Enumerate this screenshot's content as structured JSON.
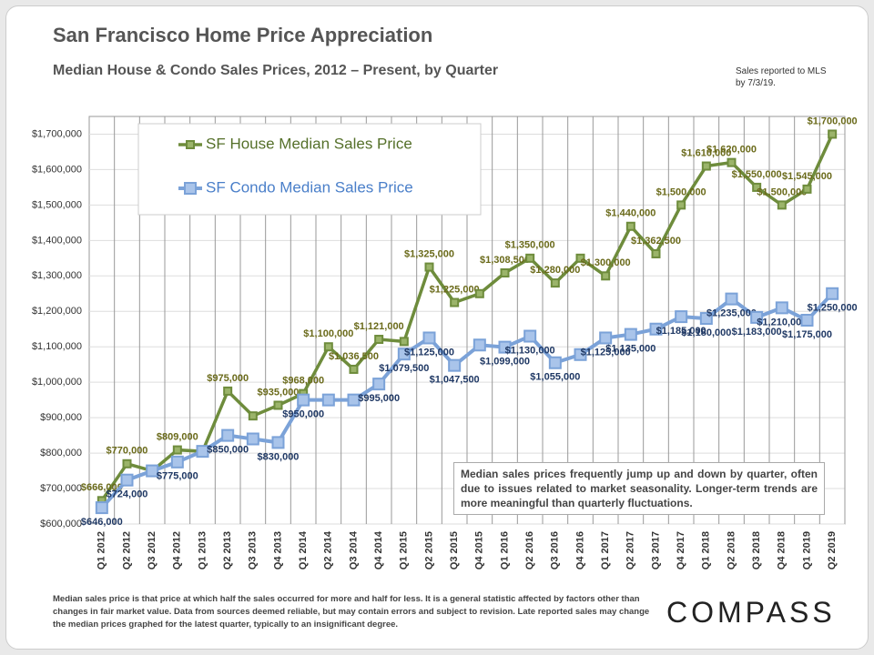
{
  "chart_data": {
    "type": "line",
    "title": "San Francisco Home Price Appreciation",
    "subtitle": "Median House & Condo Sales Prices, 2012 – Present, by Quarter",
    "note": "Sales reported to MLS by 7/3/19.",
    "annotation": "Median sales prices frequently jump up and down by quarter, often due to issues related to market seasonality. Longer-term trends are more meaningful than quarterly fluctuations.",
    "footnote": "Median sales price is that price at which half the sales occurred for more and half for less. It is a general statistic affected by factors other than changes in fair market value. Data from sources deemed reliable, but may contain errors and subject to revision. Late reported sales may change the median prices graphed for the latest quarter, typically to an insignificant degree.",
    "brand": "COMPASS",
    "categories": [
      "Q1 2012",
      "Q2 2012",
      "Q3 2012",
      "Q4 2012",
      "Q1 2013",
      "Q2 2013",
      "Q3 2013",
      "Q4 2013",
      "Q1 2014",
      "Q2 2014",
      "Q3 2014",
      "Q4 2014",
      "Q1 2015",
      "Q2 2015",
      "Q3 2015",
      "Q4 2015",
      "Q1 2016",
      "Q2 2016",
      "Q3 2016",
      "Q4 2016",
      "Q1 2017",
      "Q2 2017",
      "Q3 2017",
      "Q4 2017",
      "Q1 2018",
      "Q2 2018",
      "Q3 2018",
      "Q4 2018",
      "Q1 2019",
      "Q2 2019"
    ],
    "series": [
      {
        "name": "SF House Median Sales Price",
        "color": "#6e8c3c",
        "values": [
          666000,
          770000,
          750000,
          809000,
          805000,
          975000,
          905000,
          935000,
          968000,
          1100000,
          1036500,
          1121000,
          1115000,
          1325000,
          1225000,
          1250000,
          1308500,
          1350000,
          1280000,
          1350000,
          1300000,
          1440000,
          1362500,
          1500000,
          1610000,
          1620000,
          1550000,
          1500000,
          1545000,
          1700000
        ],
        "value_labels": [
          "$666,000",
          "$770,000",
          null,
          "$809,000",
          null,
          "$975,000",
          null,
          "$935,000",
          "$968,000",
          "$1,100,000",
          "$1,036,500",
          "$1,121,000",
          null,
          "$1,325,000",
          "$1,225,000",
          null,
          "$1,308,500",
          "$1,350,000",
          "$1,280,000",
          null,
          "$1,300,000",
          "$1,440,000",
          "$1,362,500",
          "$1,500,000",
          "$1,610,000",
          "$1,620,000",
          "$1,550,000",
          "$1,500,000",
          "$1,545,000",
          "$1,700,000"
        ]
      },
      {
        "name": "SF Condo Median Sales Price",
        "color": "#7ba2d8",
        "values": [
          646000,
          724000,
          750000,
          775000,
          805000,
          850000,
          840000,
          830000,
          950000,
          950000,
          950000,
          995000,
          1079500,
          1125000,
          1047500,
          1105000,
          1099000,
          1130000,
          1055000,
          1078000,
          1125000,
          1135000,
          1150000,
          1185000,
          1180000,
          1235000,
          1183000,
          1210000,
          1175000,
          1250000
        ],
        "value_labels": [
          "$646,000",
          "$724,000",
          null,
          "$775,000",
          null,
          "$850,000",
          null,
          "$830,000",
          "$950,000",
          null,
          null,
          "$995,000",
          "$1,079,500",
          "$1,125,000",
          "$1,047,500",
          null,
          "$1,099,000",
          "$1,130,000",
          "$1,055,000",
          null,
          "$1,125,000",
          "$1,135,000",
          null,
          "$1,185,000",
          "$1,180,000",
          "$1,235,000",
          "$1,183,000",
          "$1,210,000",
          "$1,175,000",
          "$1,250,000"
        ]
      }
    ],
    "ylim": [
      600000,
      1750000
    ],
    "yticks": [
      {
        "value": 600000,
        "label": "$600,000"
      },
      {
        "value": 700000,
        "label": "$700,000"
      },
      {
        "value": 800000,
        "label": "$800,000"
      },
      {
        "value": 900000,
        "label": "$900,000"
      },
      {
        "value": 1000000,
        "label": "$1,000,000"
      },
      {
        "value": 1100000,
        "label": "$1,100,000"
      },
      {
        "value": 1200000,
        "label": "$1,200,000"
      },
      {
        "value": 1300000,
        "label": "$1,300,000"
      },
      {
        "value": 1400000,
        "label": "$1,400,000"
      },
      {
        "value": 1500000,
        "label": "$1,500,000"
      },
      {
        "value": 1600000,
        "label": "$1,600,000"
      },
      {
        "value": 1700000,
        "label": "$1,700,000"
      }
    ],
    "grid": true
  }
}
